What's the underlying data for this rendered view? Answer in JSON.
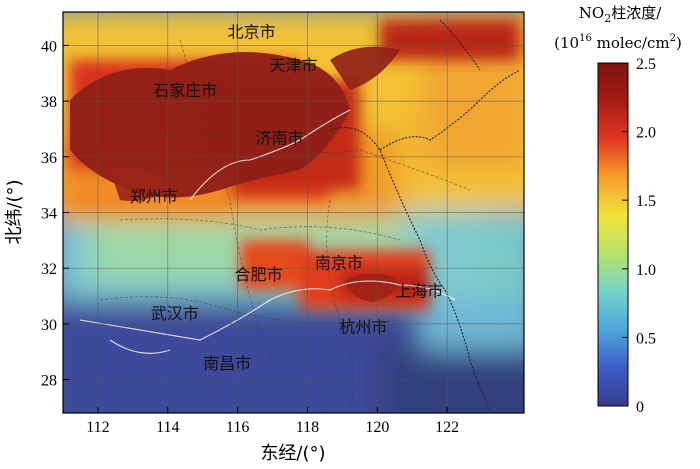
{
  "map": {
    "longitude_ticks": [
      "112",
      "114",
      "116",
      "118",
      "120",
      "122"
    ],
    "latitude_ticks": [
      "28",
      "30",
      "32",
      "34",
      "36",
      "38",
      "40"
    ],
    "x_axis_title": "东经/(°)",
    "y_axis_title": "北纬/(°)",
    "longitude_range": [
      111,
      124.2
    ],
    "latitude_range": [
      26.8,
      41.2
    ],
    "grid": true,
    "cities": [
      {
        "name": "北京市",
        "lon": 116.4,
        "lat": 40.5
      },
      {
        "name": "天津市",
        "lon": 117.6,
        "lat": 39.3
      },
      {
        "name": "石家庄市",
        "lon": 114.5,
        "lat": 38.4
      },
      {
        "name": "济南市",
        "lon": 117.2,
        "lat": 36.7
      },
      {
        "name": "郑州市",
        "lon": 113.6,
        "lat": 34.6
      },
      {
        "name": "合肥市",
        "lon": 116.6,
        "lat": 31.8
      },
      {
        "name": "南京市",
        "lon": 118.9,
        "lat": 32.2
      },
      {
        "name": "上海市",
        "lon": 121.2,
        "lat": 31.2
      },
      {
        "name": "武汉市",
        "lon": 114.2,
        "lat": 30.4
      },
      {
        "name": "杭州市",
        "lon": 119.6,
        "lat": 29.9
      },
      {
        "name": "南昌市",
        "lon": 115.7,
        "lat": 28.6
      }
    ]
  },
  "colorbar": {
    "title_line1_prefix": "NO",
    "title_line1_sub": "2",
    "title_line1_suffix": "柱浓度/",
    "title_line2_prefix": "(10",
    "title_line2_sup": "16",
    "title_line2_mid": " molec/cm",
    "title_line2_sup2": "2",
    "title_line2_suffix": ")",
    "ticks": [
      "0",
      "0.5",
      "1.0",
      "1.5",
      "2.0",
      "2.5"
    ],
    "range": [
      0,
      2.5
    ],
    "colormap": [
      "#3a3a8c",
      "#3b5ec7",
      "#4fa5dc",
      "#76d3c8",
      "#b6e36a",
      "#f2e43a",
      "#f6a02a",
      "#e2371f",
      "#a51c14",
      "#7c1410"
    ]
  }
}
